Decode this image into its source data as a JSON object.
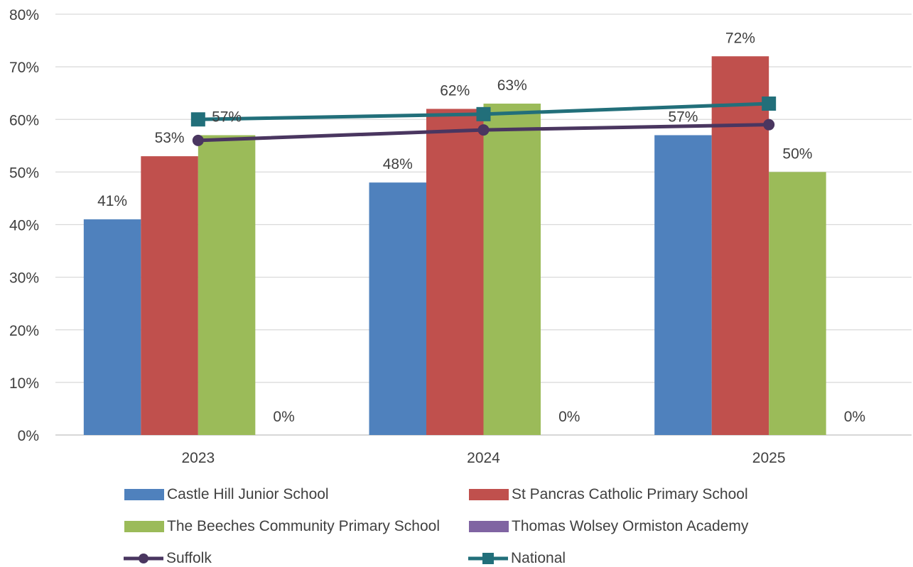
{
  "chart_data": {
    "type": "bar",
    "categories": [
      "2023",
      "2024",
      "2025"
    ],
    "ylim": [
      0,
      80
    ],
    "y_ticks": [
      "0%",
      "10%",
      "20%",
      "30%",
      "40%",
      "50%",
      "60%",
      "70%",
      "80%"
    ],
    "grid": true,
    "legend_position": "bottom",
    "series": [
      {
        "name": "Castle Hill Junior School",
        "kind": "bar",
        "color": "#4f81bd",
        "values": [
          41,
          48,
          57
        ],
        "labels": [
          "41%",
          "48%",
          "57%"
        ]
      },
      {
        "name": "St Pancras Catholic Primary School",
        "kind": "bar",
        "color": "#c0504d",
        "values": [
          53,
          62,
          72
        ],
        "labels": [
          "53%",
          "62%",
          "72%"
        ]
      },
      {
        "name": "The Beeches Community Primary School",
        "kind": "bar",
        "color": "#9bbb59",
        "values": [
          57,
          63,
          50
        ],
        "labels": [
          "57%",
          "63%",
          "50%"
        ]
      },
      {
        "name": "Thomas Wolsey Ormiston Academy",
        "kind": "bar",
        "color": "#8064a2",
        "values": [
          0,
          0,
          0
        ],
        "labels": [
          "0%",
          "0%",
          "0%"
        ]
      },
      {
        "name": "Suffolk",
        "kind": "line",
        "color": "#4a3660",
        "marker": "circle",
        "values": [
          56,
          58,
          59
        ]
      },
      {
        "name": "National",
        "kind": "line",
        "color": "#226f7a",
        "marker": "square",
        "values": [
          60,
          61,
          63
        ]
      }
    ]
  }
}
